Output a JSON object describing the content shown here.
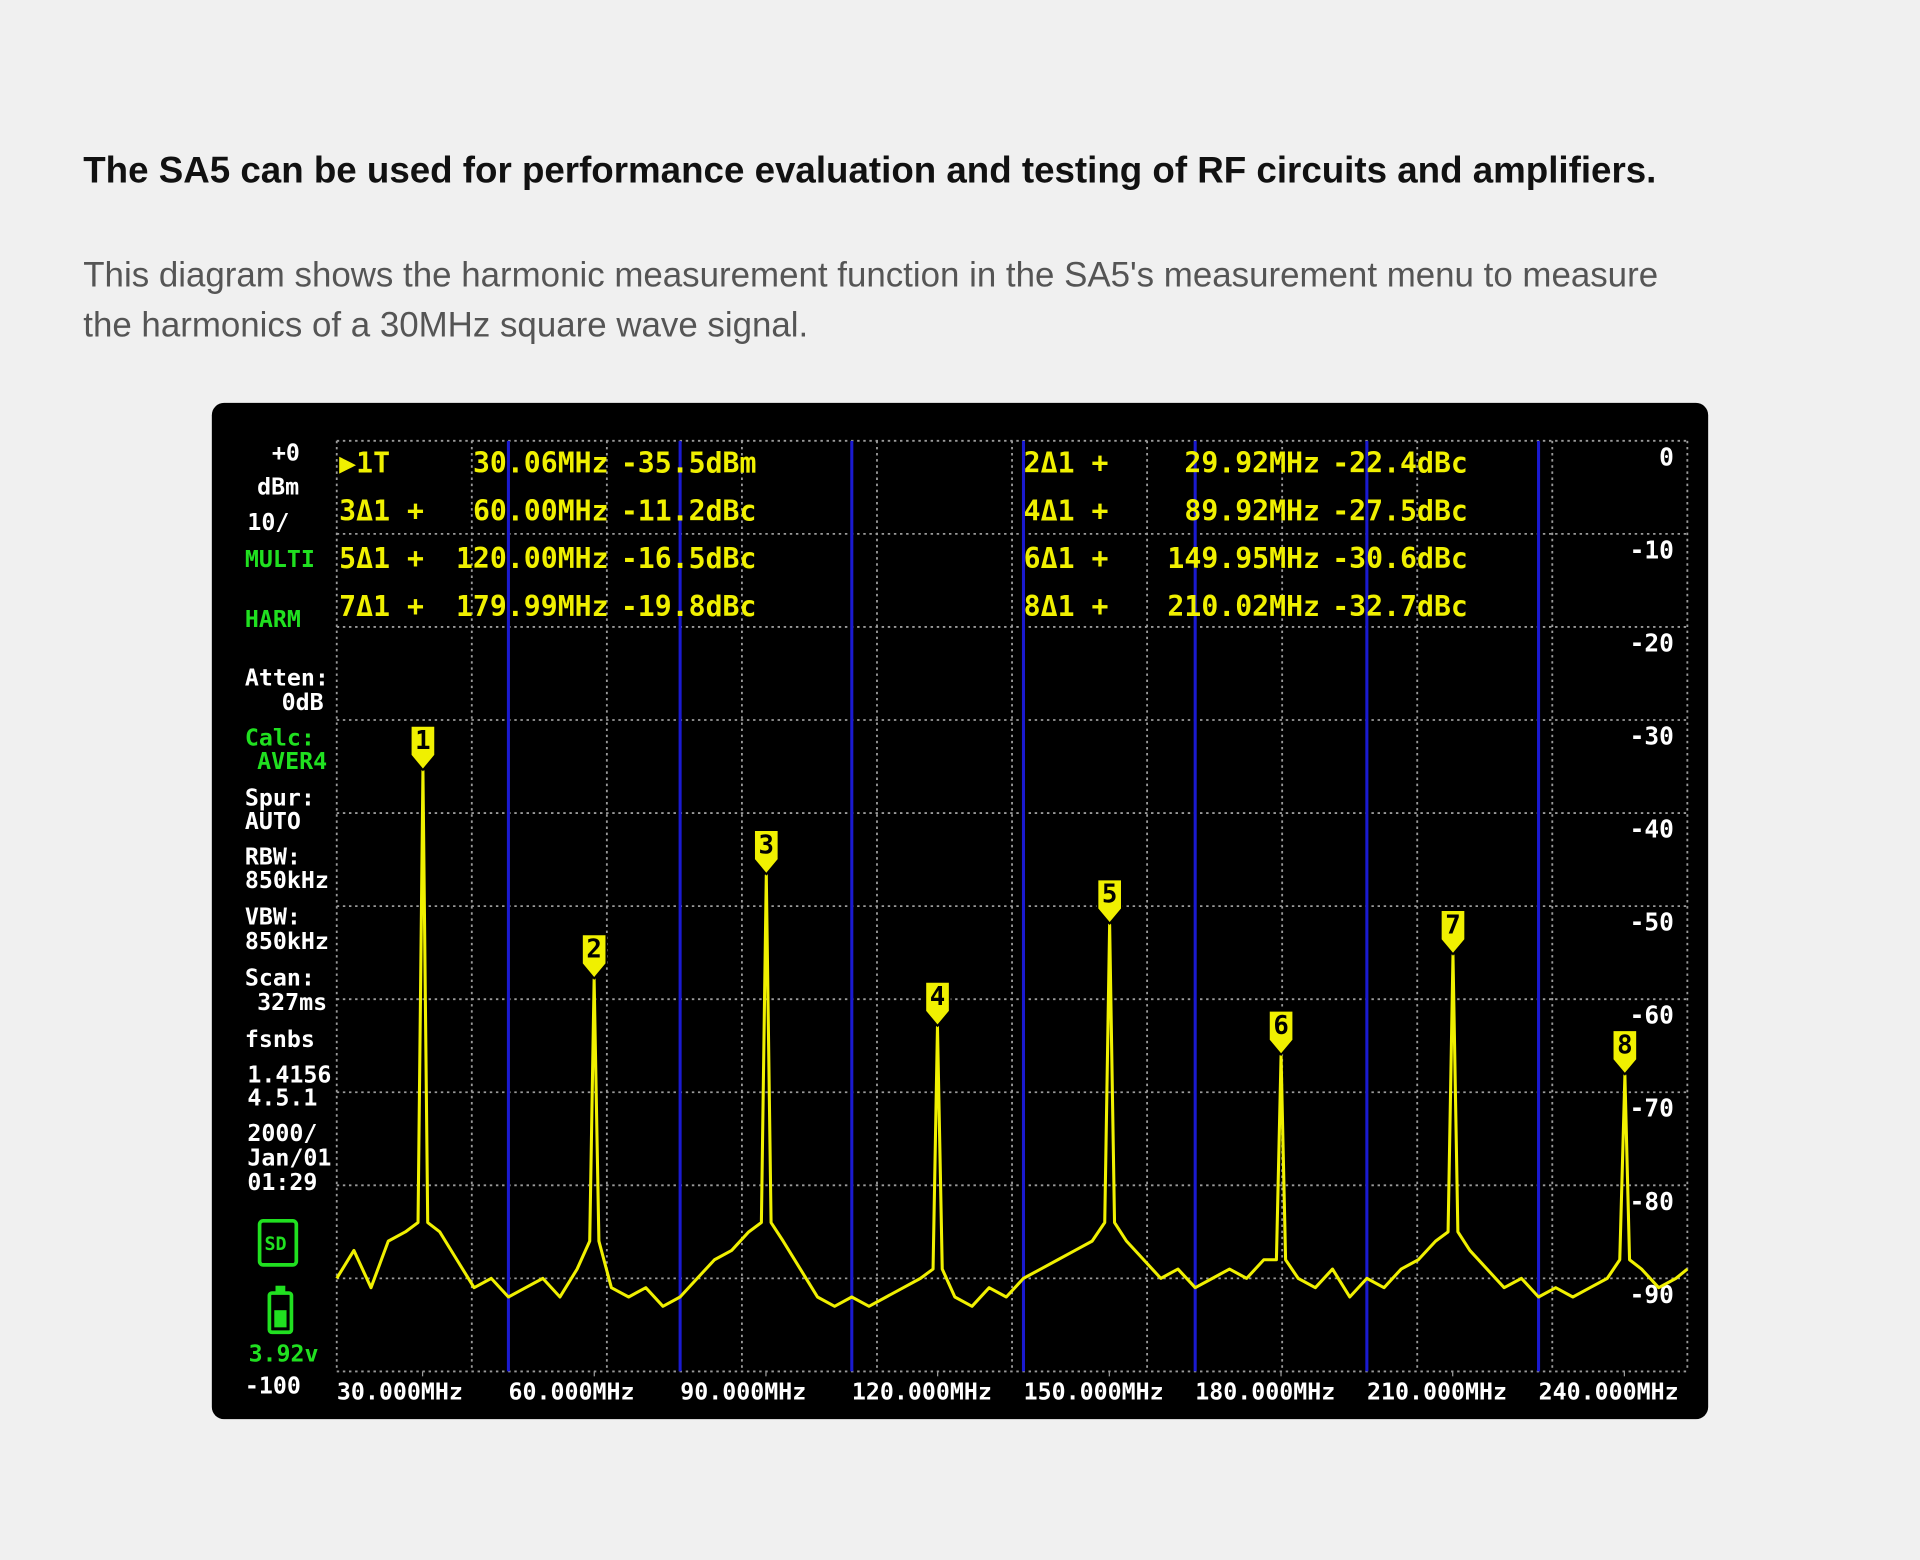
{
  "header": {
    "title": "The SA5 can be used for performance evaluation and testing of RF circuits and amplifiers.",
    "description": [
      "This diagram shows the harmonic measurement function in the SA5's measurement menu to measure",
      "the harmonics of a 30MHz square wave signal."
    ]
  },
  "chart_data": {
    "type": "line",
    "color": "#f0f000",
    "grid": true,
    "xlim": [
      15,
      251
    ],
    "ylim": [
      -100,
      0
    ],
    "xticks": [
      {
        "value": 30,
        "label": "30.000MHz"
      },
      {
        "value": 60,
        "label": "60.000MHz"
      },
      {
        "value": 90,
        "label": "90.000MHz"
      },
      {
        "value": 120,
        "label": "120.000MHz"
      },
      {
        "value": 150,
        "label": "150.000MHz"
      },
      {
        "value": 180,
        "label": "180.000MHz"
      },
      {
        "value": 210,
        "label": "210.000MHz"
      },
      {
        "value": 240,
        "label": "240.000MHz"
      }
    ],
    "yticks": [
      0,
      -10,
      -20,
      -30,
      -40,
      -50,
      -60,
      -70,
      -80,
      -90
    ],
    "x": [
      15,
      18,
      21,
      24,
      27,
      29.2,
      30.06,
      30.9,
      33,
      36,
      39,
      42,
      45,
      48,
      51,
      54,
      57,
      59.2,
      59.98,
      60.8,
      63,
      66,
      69,
      72,
      75,
      78,
      81,
      84,
      87,
      89.2,
      90.06,
      90.9,
      93,
      96,
      99,
      102,
      105,
      108,
      111,
      114,
      117,
      119.2,
      119.98,
      120.8,
      123,
      126,
      129,
      132,
      135,
      138,
      141,
      144,
      147,
      149.2,
      150.06,
      150.9,
      153,
      156,
      159,
      162,
      165,
      168,
      171,
      174,
      177,
      179.2,
      180.01,
      180.8,
      183,
      186,
      189,
      192,
      195,
      198,
      201,
      204,
      207,
      209.2,
      210.05,
      210.9,
      213,
      216,
      219,
      222,
      225,
      228,
      231,
      234,
      237,
      239.2,
      240.08,
      240.9,
      243,
      246,
      249,
      251
    ],
    "values": [
      -90,
      -87,
      -91,
      -86,
      -85,
      -84,
      -35.5,
      -84,
      -85,
      -88,
      -91,
      -90,
      -92,
      -91,
      -90,
      -92,
      -89,
      -86,
      -57.9,
      -86,
      -91,
      -92,
      -91,
      -93,
      -92,
      -90,
      -88,
      -87,
      -85,
      -84,
      -46.7,
      -84,
      -86,
      -89,
      -92,
      -93,
      -92,
      -93,
      -92,
      -91,
      -90,
      -89,
      -63.0,
      -89,
      -92,
      -93,
      -91,
      -92,
      -90,
      -89,
      -88,
      -87,
      -86,
      -84,
      -52.0,
      -84,
      -86,
      -88,
      -90,
      -89,
      -91,
      -90,
      -89,
      -90,
      -88,
      -88,
      -66.1,
      -88,
      -90,
      -91,
      -89,
      -92,
      -90,
      -91,
      -89,
      -88,
      -86,
      -85,
      -55.3,
      -85,
      -87,
      -89,
      -91,
      -90,
      -92,
      -91,
      -92,
      -91,
      -90,
      -88,
      -68.2,
      -88,
      -89,
      -91,
      -90,
      -89
    ],
    "markers": [
      {
        "label": "1",
        "x": 30.06,
        "y": -35.5
      },
      {
        "label": "2",
        "x": 59.98,
        "y": -57.9
      },
      {
        "label": "3",
        "x": 90.06,
        "y": -46.7
      },
      {
        "label": "4",
        "x": 119.98,
        "y": -63.0
      },
      {
        "label": "5",
        "x": 150.06,
        "y": -52.0
      },
      {
        "label": "6",
        "x": 180.01,
        "y": -66.1
      },
      {
        "label": "7",
        "x": 210.05,
        "y": -55.3
      },
      {
        "label": "8",
        "x": 240.08,
        "y": -68.2
      }
    ],
    "marker_table": [
      [
        "▶1T",
        "30.06MHz",
        "-35.5dBm"
      ],
      [
        "2Δ1 +",
        "29.92MHz",
        "-22.4dBc"
      ],
      [
        "3Δ1 +",
        "60.00MHz",
        "-11.2dBc"
      ],
      [
        "4Δ1 +",
        "89.92MHz",
        "-27.5dBc"
      ],
      [
        "5Δ1 +",
        "120.00MHz",
        "-16.5dBc"
      ],
      [
        "6Δ1 +",
        "149.95MHz",
        "-30.6dBc"
      ],
      [
        "7Δ1 +",
        "179.99MHz",
        "-19.8dBc"
      ],
      [
        "8Δ1 +",
        "210.02MHz",
        "-32.7dBc"
      ]
    ],
    "sidebar": [
      {
        "text": "+0",
        "color": "#ffffff"
      },
      {
        "text": "dBm",
        "color": "#ffffff"
      },
      {
        "text": "10/",
        "color": "#ffffff"
      },
      {
        "text": "MULTI",
        "color": "#20e020"
      },
      {
        "text": "HARM",
        "color": "#20e020"
      },
      {
        "text": "Atten:",
        "color": "#ffffff"
      },
      {
        "text": "0dB",
        "color": "#ffffff"
      },
      {
        "text": "Calc:",
        "color": "#20e020"
      },
      {
        "text": "AVER4",
        "color": "#20e020"
      },
      {
        "text": "Spur:",
        "color": "#ffffff"
      },
      {
        "text": "AUTO",
        "color": "#ffffff"
      },
      {
        "text": "RBW:",
        "color": "#ffffff"
      },
      {
        "text": "850kHz",
        "color": "#ffffff"
      },
      {
        "text": "VBW:",
        "color": "#ffffff"
      },
      {
        "text": "850kHz",
        "color": "#ffffff"
      },
      {
        "text": "Scan:",
        "color": "#ffffff"
      },
      {
        "text": "327ms",
        "color": "#ffffff"
      },
      {
        "text": "fsnbs",
        "color": "#ffffff"
      },
      {
        "text": "1.4156",
        "color": "#ffffff"
      },
      {
        "text": "4.5.1",
        "color": "#ffffff"
      },
      {
        "text": "2000/",
        "color": "#ffffff"
      },
      {
        "text": "Jan/01",
        "color": "#ffffff"
      },
      {
        "text": "01:29",
        "color": "#ffffff"
      },
      {
        "text": "SD",
        "color": "#20e020"
      },
      {
        "text": "3.92v",
        "color": "#20e020"
      },
      {
        "text": "-100",
        "color": "#ffffff"
      }
    ]
  }
}
